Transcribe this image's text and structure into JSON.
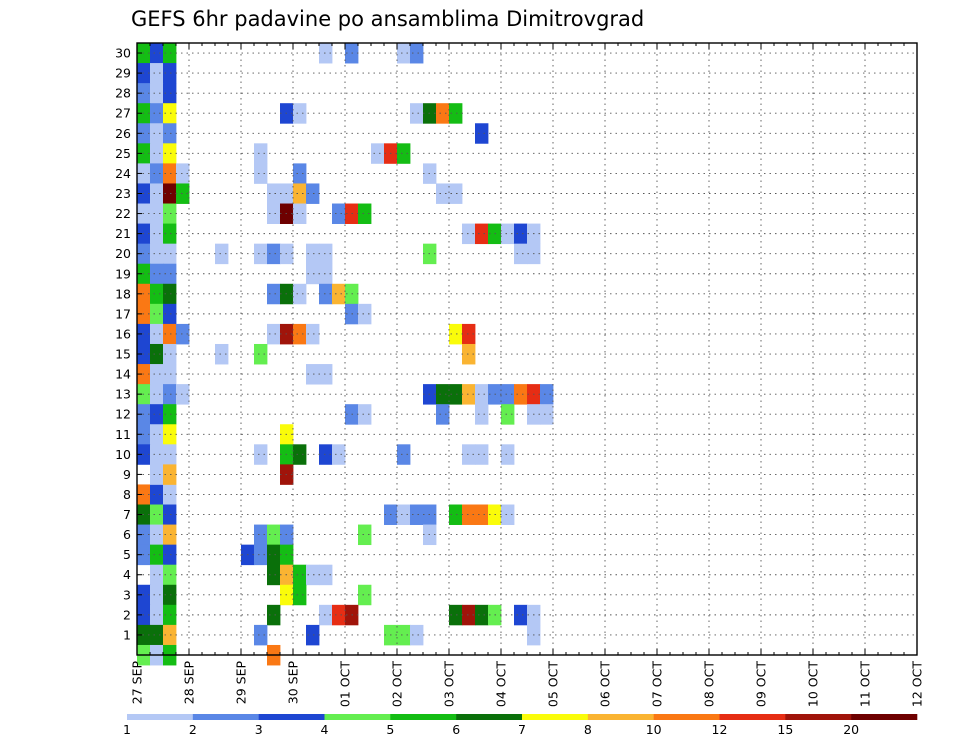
{
  "chart_data": {
    "type": "heatmap",
    "title": "GEFS 6hr padavine po ansamblima Dimitrovgrad",
    "xlabel": "",
    "ylabel": "",
    "x_tick_labels": [
      "27 SEP",
      "28 SEP",
      "29 SEP",
      "30 SEP",
      "01 OCT",
      "02 OCT",
      "03 OCT",
      "04 OCT",
      "05 OCT",
      "06 OCT",
      "07 OCT",
      "08 OCT",
      "09 OCT",
      "10 OCT",
      "11 OCT",
      "12 OCT"
    ],
    "y_tick_labels": [
      "1",
      "2",
      "3",
      "4",
      "5",
      "6",
      "7",
      "8",
      "9",
      "10",
      "11",
      "12",
      "13",
      "14",
      "15",
      "16",
      "17",
      "18",
      "19",
      "20",
      "21",
      "22",
      "23",
      "24",
      "25",
      "26",
      "27",
      "28",
      "29",
      "30"
    ],
    "ylim": [
      0,
      30
    ],
    "x_unit": "6-hour step from 27 SEP 00Z",
    "grid": true,
    "colorbar": {
      "levels": [
        "1",
        "2",
        "3",
        "4",
        "5",
        "6",
        "7",
        "8",
        "10",
        "12",
        "15",
        "20"
      ],
      "colors": [
        "#b4c8f5",
        "#5a87e6",
        "#1e46d2",
        "#64ee50",
        "#14bd14",
        "#0a700a",
        "#fafc0a",
        "#fab432",
        "#fa7814",
        "#e62d14",
        "#a0140a",
        "#6e0000"
      ]
    },
    "cells": [
      [
        0,
        30,
        4
      ],
      [
        1,
        30,
        2
      ],
      [
        2,
        30,
        4
      ],
      [
        0,
        29,
        2
      ],
      [
        1,
        29,
        0
      ],
      [
        2,
        29,
        2
      ],
      [
        0,
        28,
        1
      ],
      [
        1,
        28,
        0
      ],
      [
        2,
        28,
        2
      ],
      [
        0,
        27,
        4
      ],
      [
        1,
        27,
        1
      ],
      [
        2,
        27,
        6
      ],
      [
        0,
        26,
        1
      ],
      [
        1,
        26,
        0
      ],
      [
        2,
        26,
        1
      ],
      [
        0,
        25,
        4
      ],
      [
        1,
        25,
        0
      ],
      [
        2,
        25,
        6
      ],
      [
        0,
        24,
        0
      ],
      [
        1,
        24,
        1
      ],
      [
        2,
        24,
        8
      ],
      [
        3,
        24,
        0
      ],
      [
        0,
        23,
        2
      ],
      [
        1,
        23,
        0
      ],
      [
        2,
        23,
        11
      ],
      [
        3,
        23,
        4
      ],
      [
        0,
        22,
        0
      ],
      [
        1,
        22,
        0
      ],
      [
        2,
        22,
        3
      ],
      [
        0,
        21,
        2
      ],
      [
        1,
        21,
        0
      ],
      [
        2,
        21,
        4
      ],
      [
        0,
        20,
        1
      ],
      [
        1,
        20,
        0
      ],
      [
        2,
        20,
        0
      ],
      [
        0,
        19,
        4
      ],
      [
        1,
        19,
        1
      ],
      [
        2,
        19,
        1
      ],
      [
        0,
        18,
        8
      ],
      [
        1,
        18,
        4
      ],
      [
        2,
        18,
        5
      ],
      [
        0,
        17,
        8
      ],
      [
        1,
        17,
        3
      ],
      [
        2,
        17,
        2
      ],
      [
        0,
        16,
        2
      ],
      [
        1,
        16,
        0
      ],
      [
        2,
        16,
        8
      ],
      [
        3,
        16,
        1
      ],
      [
        0,
        15,
        2
      ],
      [
        1,
        15,
        5
      ],
      [
        2,
        15,
        0
      ],
      [
        0,
        14,
        8
      ],
      [
        1,
        14,
        0
      ],
      [
        2,
        14,
        0
      ],
      [
        0,
        13,
        3
      ],
      [
        1,
        13,
        0
      ],
      [
        2,
        13,
        1
      ],
      [
        3,
        13,
        0
      ],
      [
        0,
        12,
        1
      ],
      [
        1,
        12,
        2
      ],
      [
        2,
        12,
        4
      ],
      [
        0,
        11,
        1
      ],
      [
        1,
        11,
        0
      ],
      [
        2,
        11,
        6
      ],
      [
        0,
        10,
        2
      ],
      [
        1,
        10,
        0
      ],
      [
        2,
        10,
        0
      ],
      [
        0,
        8,
        8
      ],
      [
        1,
        8,
        2
      ],
      [
        2,
        8,
        0
      ],
      [
        1,
        9,
        0
      ],
      [
        2,
        9,
        7
      ],
      [
        0,
        7,
        5
      ],
      [
        1,
        7,
        3
      ],
      [
        2,
        7,
        2
      ],
      [
        0,
        6,
        1
      ],
      [
        1,
        6,
        0
      ],
      [
        2,
        6,
        7
      ],
      [
        0,
        5,
        1
      ],
      [
        1,
        5,
        4
      ],
      [
        2,
        5,
        2
      ],
      [
        1,
        4,
        0
      ],
      [
        2,
        4,
        3
      ],
      [
        0,
        3,
        2
      ],
      [
        1,
        3,
        0
      ],
      [
        2,
        3,
        5
      ],
      [
        0,
        2,
        2
      ],
      [
        1,
        2,
        0
      ],
      [
        2,
        2,
        4
      ],
      [
        0,
        1,
        5
      ],
      [
        1,
        1,
        5
      ],
      [
        2,
        1,
        7
      ],
      [
        0,
        0,
        3
      ],
      [
        1,
        0,
        0
      ],
      [
        2,
        0,
        4
      ],
      [
        14,
        30,
        0
      ],
      [
        16,
        30,
        1
      ],
      [
        20,
        30,
        0
      ],
      [
        21,
        30,
        1
      ],
      [
        11,
        27,
        2
      ],
      [
        12,
        27,
        0
      ],
      [
        21,
        27,
        0
      ],
      [
        22,
        27,
        5
      ],
      [
        23,
        27,
        8
      ],
      [
        24,
        27,
        4
      ],
      [
        26,
        26,
        2
      ],
      [
        9,
        25,
        0
      ],
      [
        18,
        25,
        0
      ],
      [
        19,
        25,
        9
      ],
      [
        20,
        25,
        4
      ],
      [
        9,
        24,
        0
      ],
      [
        12,
        24,
        1
      ],
      [
        22,
        24,
        0
      ],
      [
        10,
        23,
        0
      ],
      [
        11,
        23,
        0
      ],
      [
        12,
        23,
        7
      ],
      [
        13,
        23,
        1
      ],
      [
        23,
        23,
        0
      ],
      [
        24,
        23,
        0
      ],
      [
        10,
        22,
        0
      ],
      [
        11,
        22,
        11
      ],
      [
        12,
        22,
        0
      ],
      [
        15,
        22,
        1
      ],
      [
        16,
        22,
        9
      ],
      [
        17,
        22,
        4
      ],
      [
        25,
        21,
        0
      ],
      [
        26,
        21,
        9
      ],
      [
        27,
        21,
        4
      ],
      [
        28,
        21,
        0
      ],
      [
        29,
        21,
        2
      ],
      [
        30,
        21,
        0
      ],
      [
        6,
        20,
        0
      ],
      [
        9,
        20,
        0
      ],
      [
        10,
        20,
        1
      ],
      [
        11,
        20,
        0
      ],
      [
        13,
        20,
        0
      ],
      [
        14,
        20,
        0
      ],
      [
        22,
        20,
        3
      ],
      [
        29,
        20,
        0
      ],
      [
        30,
        20,
        0
      ],
      [
        13,
        19,
        0
      ],
      [
        14,
        19,
        0
      ],
      [
        10,
        18,
        1
      ],
      [
        11,
        18,
        5
      ],
      [
        12,
        18,
        0
      ],
      [
        14,
        18,
        1
      ],
      [
        15,
        18,
        7
      ],
      [
        16,
        18,
        3
      ],
      [
        16,
        17,
        1
      ],
      [
        17,
        17,
        0
      ],
      [
        10,
        16,
        0
      ],
      [
        11,
        16,
        10
      ],
      [
        12,
        16,
        8
      ],
      [
        13,
        16,
        0
      ],
      [
        24,
        16,
        6
      ],
      [
        25,
        16,
        9
      ],
      [
        6,
        15,
        0
      ],
      [
        9,
        15,
        3
      ],
      [
        25,
        15,
        7
      ],
      [
        13,
        14,
        0
      ],
      [
        14,
        14,
        0
      ],
      [
        22,
        13,
        2
      ],
      [
        23,
        13,
        5
      ],
      [
        24,
        13,
        5
      ],
      [
        25,
        13,
        7
      ],
      [
        26,
        13,
        0
      ],
      [
        27,
        13,
        1
      ],
      [
        28,
        13,
        1
      ],
      [
        29,
        13,
        8
      ],
      [
        30,
        13,
        9
      ],
      [
        31,
        13,
        1
      ],
      [
        16,
        12,
        1
      ],
      [
        17,
        12,
        0
      ],
      [
        23,
        12,
        1
      ],
      [
        26,
        12,
        0
      ],
      [
        28,
        12,
        3
      ],
      [
        30,
        12,
        0
      ],
      [
        31,
        12,
        0
      ],
      [
        11,
        11,
        6
      ],
      [
        9,
        10,
        0
      ],
      [
        11,
        10,
        4
      ],
      [
        12,
        10,
        5
      ],
      [
        14,
        10,
        2
      ],
      [
        15,
        10,
        0
      ],
      [
        20,
        10,
        1
      ],
      [
        25,
        10,
        0
      ],
      [
        26,
        10,
        0
      ],
      [
        28,
        10,
        0
      ],
      [
        11,
        9,
        10
      ],
      [
        19,
        7,
        1
      ],
      [
        20,
        7,
        0
      ],
      [
        21,
        7,
        1
      ],
      [
        22,
        7,
        1
      ],
      [
        24,
        7,
        4
      ],
      [
        25,
        7,
        8
      ],
      [
        26,
        7,
        8
      ],
      [
        27,
        7,
        6
      ],
      [
        28,
        7,
        0
      ],
      [
        9,
        6,
        1
      ],
      [
        10,
        6,
        3
      ],
      [
        11,
        6,
        1
      ],
      [
        17,
        6,
        3
      ],
      [
        22,
        6,
        0
      ],
      [
        8,
        5,
        2
      ],
      [
        9,
        5,
        1
      ],
      [
        10,
        5,
        5
      ],
      [
        11,
        5,
        4
      ],
      [
        10,
        4,
        5
      ],
      [
        11,
        4,
        7
      ],
      [
        12,
        4,
        4
      ],
      [
        13,
        4,
        0
      ],
      [
        14,
        4,
        0
      ],
      [
        11,
        3,
        6
      ],
      [
        12,
        3,
        4
      ],
      [
        17,
        3,
        3
      ],
      [
        10,
        2,
        5
      ],
      [
        14,
        2,
        0
      ],
      [
        15,
        2,
        9
      ],
      [
        16,
        2,
        10
      ],
      [
        24,
        2,
        5
      ],
      [
        25,
        2,
        10
      ],
      [
        26,
        2,
        5
      ],
      [
        27,
        2,
        3
      ],
      [
        29,
        2,
        2
      ],
      [
        30,
        2,
        0
      ],
      [
        9,
        1,
        1
      ],
      [
        13,
        1,
        2
      ],
      [
        19,
        1,
        3
      ],
      [
        20,
        1,
        3
      ],
      [
        21,
        1,
        0
      ],
      [
        30,
        1,
        0
      ],
      [
        10,
        0,
        8
      ]
    ]
  }
}
